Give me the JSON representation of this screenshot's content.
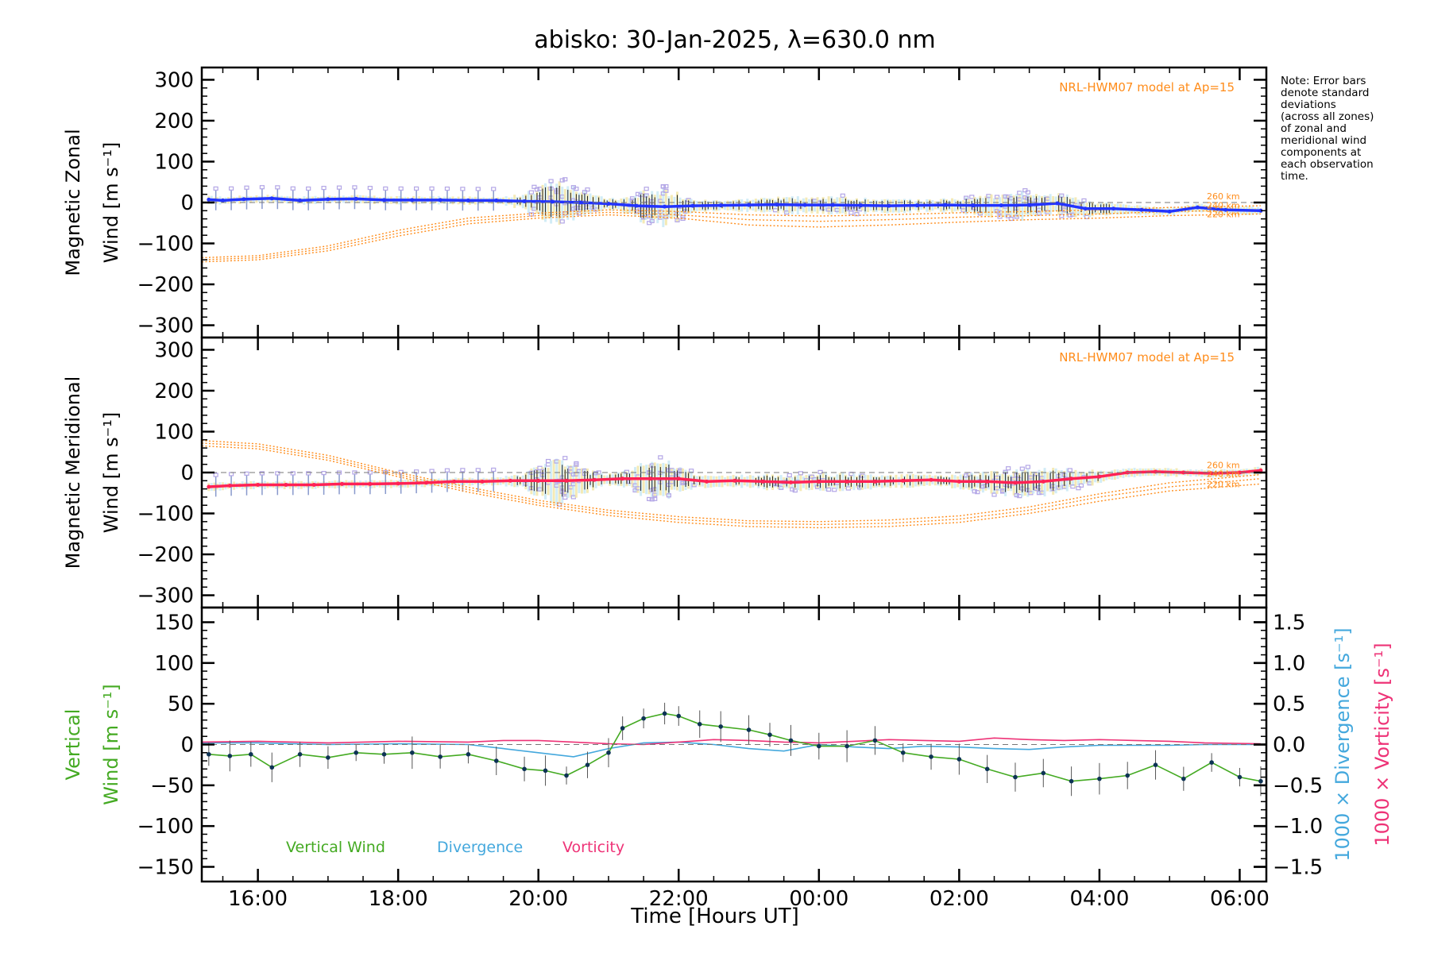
{
  "title": "abisko: 30-Jan-2025, λ=630.0 nm",
  "note_lines": [
    "Note: Error bars",
    "denote standard",
    "deviations",
    "(across all zones)",
    "of zonal and",
    "meridional wind",
    "components at",
    "each observation",
    "time."
  ],
  "colors": {
    "zonal": "#2233ff",
    "meridional": "#ff2255",
    "model": "#ff8c1a",
    "scatter": "#b3a6e6",
    "spread_light": "#c9e9f5",
    "spread_yellow": "#f2e6a8",
    "vertical": "#44aa22",
    "vertical_dot": "#0d3355",
    "divergence": "#44a8dd",
    "vorticity": "#ee3377",
    "axis": "#000000"
  },
  "chart_data": [
    {
      "type": "line",
      "panel": "zonal",
      "ylabel_line1": "Magnetic Zonal",
      "ylabel_line2": "Wind [m s⁻¹]",
      "ylim": [
        -330,
        330
      ],
      "yticks": [
        -300,
        -200,
        -100,
        0,
        100,
        200,
        300
      ],
      "ytick_labels": [
        "−300",
        "−200",
        "−100",
        "0",
        "100",
        "200",
        "300"
      ],
      "model_label": "NRL-HWM07 model at Ap=15",
      "model_alt_labels": [
        "260 km",
        "240 km",
        "220 km"
      ],
      "series": [
        {
          "name": "Zonal wind",
          "x": [
            15.3,
            15.5,
            15.8,
            16.2,
            16.6,
            17.0,
            17.4,
            17.8,
            18.2,
            18.6,
            19.0,
            19.4,
            19.8,
            20.2,
            20.6,
            21.0,
            21.4,
            21.8,
            22.2,
            22.6,
            23.0,
            23.4,
            23.8,
            24.2,
            24.6,
            25.0,
            25.4,
            25.8,
            26.2,
            26.6,
            27.0,
            27.4,
            27.8,
            28.2,
            28.6,
            29.0,
            29.4,
            29.8,
            30.3
          ],
          "y": [
            7,
            5,
            8,
            10,
            5,
            8,
            9,
            6,
            6,
            6,
            5,
            5,
            3,
            2,
            0,
            -3,
            -8,
            -10,
            -8,
            -7,
            -6,
            -5,
            -6,
            -6,
            -7,
            -8,
            -7,
            -6,
            -7,
            -7,
            -6,
            -2,
            -15,
            -15,
            -18,
            -22,
            -12,
            -18,
            -20
          ]
        },
        {
          "name": "NRL-HWM07 220 km",
          "x": [
            15.2,
            16.0,
            17.0,
            18.0,
            19.0,
            20.0,
            21.0,
            22.0,
            23.0,
            24.0,
            25.0,
            26.0,
            27.0,
            28.0,
            29.0,
            30.3
          ],
          "y": [
            -145,
            -140,
            -118,
            -82,
            -52,
            -38,
            -30,
            -38,
            -55,
            -60,
            -55,
            -48,
            -42,
            -38,
            -32,
            -28
          ]
        },
        {
          "name": "NRL-HWM07 240 km",
          "x": [
            15.2,
            16.0,
            17.0,
            18.0,
            19.0,
            20.0,
            21.0,
            22.0,
            23.0,
            24.0,
            25.0,
            26.0,
            27.0,
            28.0,
            29.0,
            30.3
          ],
          "y": [
            -140,
            -135,
            -112,
            -75,
            -45,
            -32,
            -24,
            -30,
            -42,
            -46,
            -42,
            -36,
            -32,
            -28,
            -22,
            -18
          ]
        },
        {
          "name": "NRL-HWM07 260 km",
          "x": [
            15.2,
            16.0,
            17.0,
            18.0,
            19.0,
            20.0,
            21.0,
            22.0,
            23.0,
            24.0,
            25.0,
            26.0,
            27.0,
            28.0,
            29.0,
            30.3
          ],
          "y": [
            -135,
            -130,
            -106,
            -68,
            -38,
            -26,
            -18,
            -22,
            -30,
            -33,
            -30,
            -25,
            -22,
            -18,
            -12,
            -8
          ]
        }
      ]
    },
    {
      "type": "line",
      "panel": "meridional",
      "ylabel_line1": "Magnetic Meridional",
      "ylabel_line2": "Wind [m s⁻¹]",
      "ylim": [
        -330,
        330
      ],
      "yticks": [
        -300,
        -200,
        -100,
        0,
        100,
        200,
        300
      ],
      "ytick_labels": [
        "−300",
        "−200",
        "−100",
        "0",
        "100",
        "200",
        "300"
      ],
      "model_label": "NRL-HWM07 model at Ap=15",
      "model_alt_labels": [
        "260 km",
        "240 km",
        "220 km"
      ],
      "series": [
        {
          "name": "Meridional wind",
          "x": [
            15.3,
            15.6,
            16.0,
            16.4,
            16.8,
            17.2,
            17.6,
            18.0,
            18.4,
            18.8,
            19.2,
            19.6,
            20.0,
            20.4,
            20.8,
            21.2,
            21.6,
            22.0,
            22.4,
            22.8,
            23.2,
            23.6,
            24.0,
            24.4,
            24.8,
            25.2,
            25.6,
            26.0,
            26.4,
            26.8,
            27.2,
            27.6,
            28.0,
            28.4,
            28.8,
            29.2,
            29.6,
            30.0,
            30.3
          ],
          "y": [
            -35,
            -32,
            -30,
            -30,
            -30,
            -28,
            -28,
            -27,
            -25,
            -22,
            -22,
            -20,
            -20,
            -20,
            -18,
            -15,
            -15,
            -15,
            -22,
            -20,
            -22,
            -24,
            -22,
            -22,
            -22,
            -20,
            -18,
            -22,
            -22,
            -25,
            -22,
            -15,
            -10,
            0,
            2,
            0,
            -2,
            0,
            5
          ]
        },
        {
          "name": "NRL-HWM07 220 km",
          "x": [
            15.2,
            16.0,
            17.0,
            18.0,
            19.0,
            20.0,
            21.0,
            22.0,
            23.0,
            24.0,
            25.0,
            26.0,
            27.0,
            28.0,
            29.0,
            30.3
          ],
          "y": [
            65,
            58,
            30,
            -10,
            -48,
            -80,
            -105,
            -122,
            -132,
            -135,
            -132,
            -122,
            -100,
            -70,
            -45,
            -28
          ]
        },
        {
          "name": "NRL-HWM07 240 km",
          "x": [
            15.2,
            16.0,
            17.0,
            18.0,
            19.0,
            20.0,
            21.0,
            22.0,
            23.0,
            24.0,
            25.0,
            26.0,
            27.0,
            28.0,
            29.0,
            30.3
          ],
          "y": [
            72,
            64,
            36,
            -5,
            -42,
            -74,
            -98,
            -115,
            -124,
            -127,
            -124,
            -114,
            -92,
            -60,
            -35,
            -15
          ]
        },
        {
          "name": "NRL-HWM07 260 km",
          "x": [
            15.2,
            16.0,
            17.0,
            18.0,
            19.0,
            20.0,
            21.0,
            22.0,
            23.0,
            24.0,
            25.0,
            26.0,
            27.0,
            28.0,
            29.0,
            30.3
          ],
          "y": [
            78,
            70,
            42,
            0,
            -36,
            -68,
            -92,
            -108,
            -118,
            -120,
            -116,
            -106,
            -84,
            -52,
            -25,
            -5
          ]
        }
      ]
    },
    {
      "type": "line",
      "panel": "vertical",
      "ylabel_line1": "Vertical",
      "ylabel_line2": "Wind [m s⁻¹]",
      "ylim": [
        -168,
        168
      ],
      "yticks": [
        -150,
        -100,
        -50,
        0,
        50,
        100,
        150
      ],
      "ytick_labels": [
        "−150",
        "−100",
        "−50",
        "0",
        "50",
        "100",
        "150"
      ],
      "right_yticks": [
        -1.5,
        -1.0,
        -0.5,
        0.0,
        0.5,
        1.0,
        1.5
      ],
      "right_ytick_labels": [
        "−1.5",
        "−1.0",
        "−0.5",
        "0.0",
        "0.5",
        "1.0",
        "1.5"
      ],
      "right_label_divergence": "1000 × Divergence [s⁻¹]",
      "right_label_vorticity": "1000 × Vorticity [s⁻¹]",
      "legend": [
        "Vertical Wind",
        "Divergence",
        "Vorticity"
      ],
      "series": [
        {
          "name": "Vertical Wind",
          "x": [
            15.3,
            15.6,
            15.9,
            16.2,
            16.6,
            17.0,
            17.4,
            17.8,
            18.2,
            18.6,
            19.0,
            19.4,
            19.8,
            20.1,
            20.4,
            20.7,
            21.0,
            21.2,
            21.5,
            21.8,
            22.0,
            22.3,
            22.6,
            23.0,
            23.3,
            23.6,
            24.0,
            24.4,
            24.8,
            25.2,
            25.6,
            26.0,
            26.4,
            26.8,
            27.2,
            27.6,
            28.0,
            28.4,
            28.8,
            29.2,
            29.6,
            30.0,
            30.3
          ],
          "y": [
            -12,
            -14,
            -12,
            -28,
            -12,
            -16,
            -10,
            -12,
            -10,
            -15,
            -12,
            -20,
            -30,
            -32,
            -38,
            -25,
            -10,
            20,
            32,
            38,
            35,
            25,
            22,
            18,
            12,
            5,
            -2,
            -2,
            5,
            -10,
            -15,
            -18,
            -30,
            -40,
            -35,
            -45,
            -42,
            -38,
            -25,
            -42,
            -22,
            -40,
            -45
          ]
        },
        {
          "name": "Divergence",
          "x": [
            15.2,
            16.0,
            17.0,
            18.0,
            19.0,
            19.5,
            20.0,
            20.5,
            21.0,
            21.5,
            22.0,
            22.5,
            23.0,
            23.5,
            24.0,
            24.5,
            25.0,
            25.5,
            26.0,
            26.5,
            27.0,
            27.5,
            28.0,
            28.5,
            29.0,
            29.5,
            30.3
          ],
          "y": [
            0.02,
            0.02,
            0.0,
            0.01,
            0.0,
            -0.05,
            -0.1,
            -0.15,
            -0.05,
            0.02,
            0.03,
            0.0,
            -0.05,
            -0.08,
            0.0,
            -0.03,
            -0.05,
            -0.02,
            -0.03,
            -0.05,
            -0.06,
            -0.03,
            -0.01,
            -0.01,
            -0.01,
            0.0,
            0.0
          ]
        },
        {
          "name": "Vorticity",
          "x": [
            15.2,
            16.0,
            17.0,
            18.0,
            19.0,
            19.5,
            20.0,
            20.5,
            21.0,
            21.5,
            22.0,
            22.5,
            23.0,
            23.5,
            24.0,
            24.5,
            25.0,
            25.5,
            26.0,
            26.5,
            27.0,
            27.5,
            28.0,
            28.5,
            29.0,
            29.5,
            30.3
          ],
          "y": [
            0.03,
            0.04,
            0.02,
            0.04,
            0.03,
            0.05,
            0.05,
            0.03,
            0.01,
            0.0,
            0.03,
            0.06,
            0.05,
            0.03,
            0.02,
            0.04,
            0.06,
            0.05,
            0.04,
            0.08,
            0.06,
            0.05,
            0.06,
            0.05,
            0.04,
            0.02,
            0.01
          ]
        }
      ]
    }
  ],
  "x_axis": {
    "label": "Time [Hours UT]",
    "xlim": [
      15.2,
      30.38
    ],
    "ticks": [
      16,
      18,
      20,
      22,
      24,
      26,
      28,
      30
    ],
    "tick_labels": [
      "16:00",
      "18:00",
      "20:00",
      "22:00",
      "00:00",
      "02:00",
      "04:00",
      "06:00"
    ]
  }
}
